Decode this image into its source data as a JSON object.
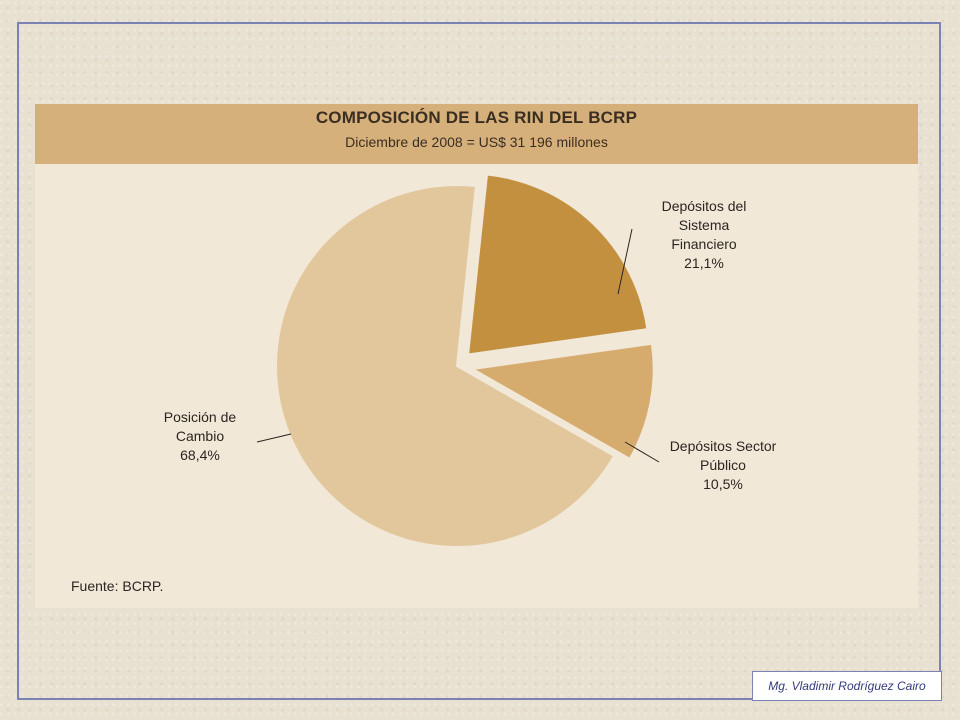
{
  "chart_data": {
    "type": "pie",
    "title": "COMPOSICIÓN DE LAS RIN DEL BCRP",
    "subtitle": "Diciembre de 2008 = US$ 31 196 millones",
    "slices": [
      {
        "label_lines": [
          "Depósitos del",
          "Sistema",
          "Financiero"
        ],
        "value_label": "21,1%",
        "value": 21.1,
        "color": "#c3903f",
        "exploded": true
      },
      {
        "label_lines": [
          "Depósitos Sector",
          "Público"
        ],
        "value_label": "10,5%",
        "value": 10.5,
        "color": "#d6ab6e",
        "exploded": true
      },
      {
        "label_lines": [
          "Posición de",
          "Cambio"
        ],
        "value_label": "68,4%",
        "value": 68.4,
        "color": "#e2c79d",
        "exploded": false
      }
    ],
    "source": "Fuente: BCRP."
  },
  "footer": {
    "credit": "Mg. Vladimir Rodríguez Cairo"
  }
}
